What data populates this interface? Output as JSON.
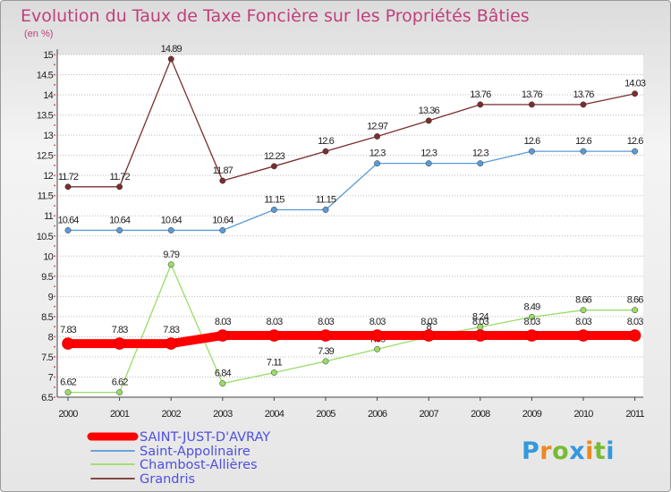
{
  "chart_data": {
    "type": "line",
    "title": "Evolution du Taux de Taxe Foncière sur les Propriétés Bâties",
    "subtitle": "(en %)",
    "x": [
      "2000",
      "2001",
      "2002",
      "2003",
      "2004",
      "2005",
      "2006",
      "2007",
      "2008",
      "2009",
      "2010",
      "2011"
    ],
    "y_ticks": [
      "6.5",
      "7",
      "7.5",
      "8",
      "8.5",
      "9",
      "9.5",
      "10",
      "10.5",
      "11",
      "11.5",
      "12",
      "12.5",
      "13",
      "13.5",
      "14",
      "14.5",
      "15"
    ],
    "ylim": [
      6.5,
      15
    ],
    "grid": "horizontal dashed",
    "legend_position": "bottom-left",
    "series": [
      {
        "name": "SAINT-JUST-D'AVRAY",
        "color": "#ff0000",
        "values": [
          7.83,
          7.83,
          7.83,
          8.03,
          8.03,
          8.03,
          8.03,
          8.03,
          8.03,
          8.03,
          8.03,
          8.03
        ],
        "labels": [
          "7.83",
          "7.83",
          "7.83",
          "8.03",
          "8.03",
          "8.03",
          "8.03",
          "8.03",
          "8.03",
          "8.03",
          "8.03",
          "8.03"
        ]
      },
      {
        "name": "Saint-Appolinaire",
        "color": "#5b9bd5",
        "values": [
          10.64,
          10.64,
          10.64,
          10.64,
          11.15,
          11.15,
          12.3,
          12.3,
          12.3,
          12.6,
          12.6,
          12.6
        ],
        "labels": [
          "10.64",
          "10.64",
          "10.64",
          "10.64",
          "11.15",
          "11.15",
          "12.3",
          "12.3",
          "12.3",
          "12.6",
          "12.6",
          "12.6"
        ]
      },
      {
        "name": "Chambost-Allières",
        "color": "#99dd66",
        "values": [
          6.62,
          6.62,
          9.79,
          6.84,
          7.11,
          7.39,
          7.69,
          8,
          8.24,
          8.49,
          8.66,
          8.66
        ],
        "labels": [
          "6.62",
          "6.62",
          "9.79",
          "6.84",
          "7.11",
          "7.39",
          "7.69",
          "8",
          "8.24",
          "8.49",
          "8.66",
          "8.66"
        ]
      },
      {
        "name": "Grandris",
        "color": "#7a2e2e",
        "values": [
          11.72,
          11.72,
          14.89,
          11.87,
          12.23,
          12.6,
          12.97,
          13.36,
          13.76,
          13.76,
          13.76,
          14.03
        ],
        "labels": [
          "11.72",
          "11.72",
          "14.89",
          "11.87",
          "12.23",
          "12.6",
          "12.97",
          "13.36",
          "13.76",
          "13.76",
          "13.76",
          "14.03"
        ]
      }
    ]
  },
  "logo": {
    "letters": [
      "P",
      "r",
      "o",
      "x",
      "i",
      "t",
      "i"
    ],
    "colors": [
      "#3399dd",
      "#ee8822",
      "#77bb33",
      "#3399dd",
      "#ee8822",
      "#77bb33",
      "#3399dd"
    ]
  }
}
